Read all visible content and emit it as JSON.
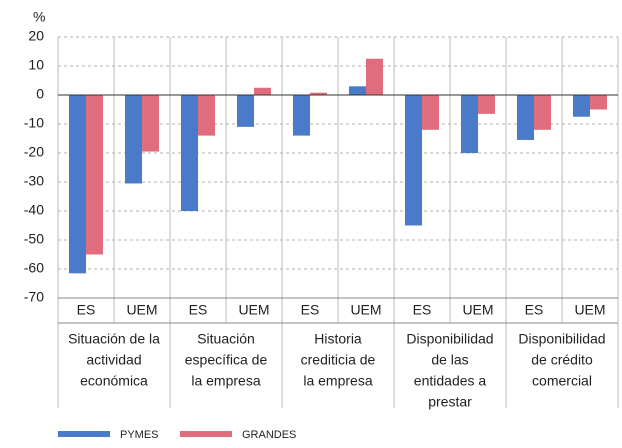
{
  "chart_data": {
    "type": "bar",
    "y_label": "%",
    "categories": [
      "ES",
      "UEM",
      "ES",
      "UEM",
      "ES",
      "UEM",
      "ES",
      "UEM",
      "ES",
      "UEM"
    ],
    "group_labels": [
      [
        "Situación de la",
        "actividad",
        "económica"
      ],
      [
        "Situación",
        "específica de",
        "la empresa"
      ],
      [
        "Historia",
        "crediticia de",
        "la empresa"
      ],
      [
        "Disponibilidad",
        "de las",
        "entidades a",
        "prestar"
      ],
      [
        "Disponibilidad",
        "de crédito",
        "comercial"
      ]
    ],
    "series": [
      {
        "name": "PYMES",
        "color": "#4a7bc9",
        "values": [
          -61.5,
          -30.5,
          -40,
          -11,
          -14,
          3,
          -45,
          -20,
          -15.5,
          -7.5
        ]
      },
      {
        "name": "GRANDES",
        "color": "#e06d7e",
        "values": [
          -55,
          -19.5,
          -14,
          2.5,
          0.8,
          12.5,
          -12,
          -6.5,
          -12,
          -5
        ]
      }
    ],
    "ylim": [
      -70,
      20
    ],
    "yticks": [
      20,
      10,
      0,
      -10,
      -20,
      -30,
      -40,
      -50,
      -60,
      -70
    ],
    "grid": true
  }
}
